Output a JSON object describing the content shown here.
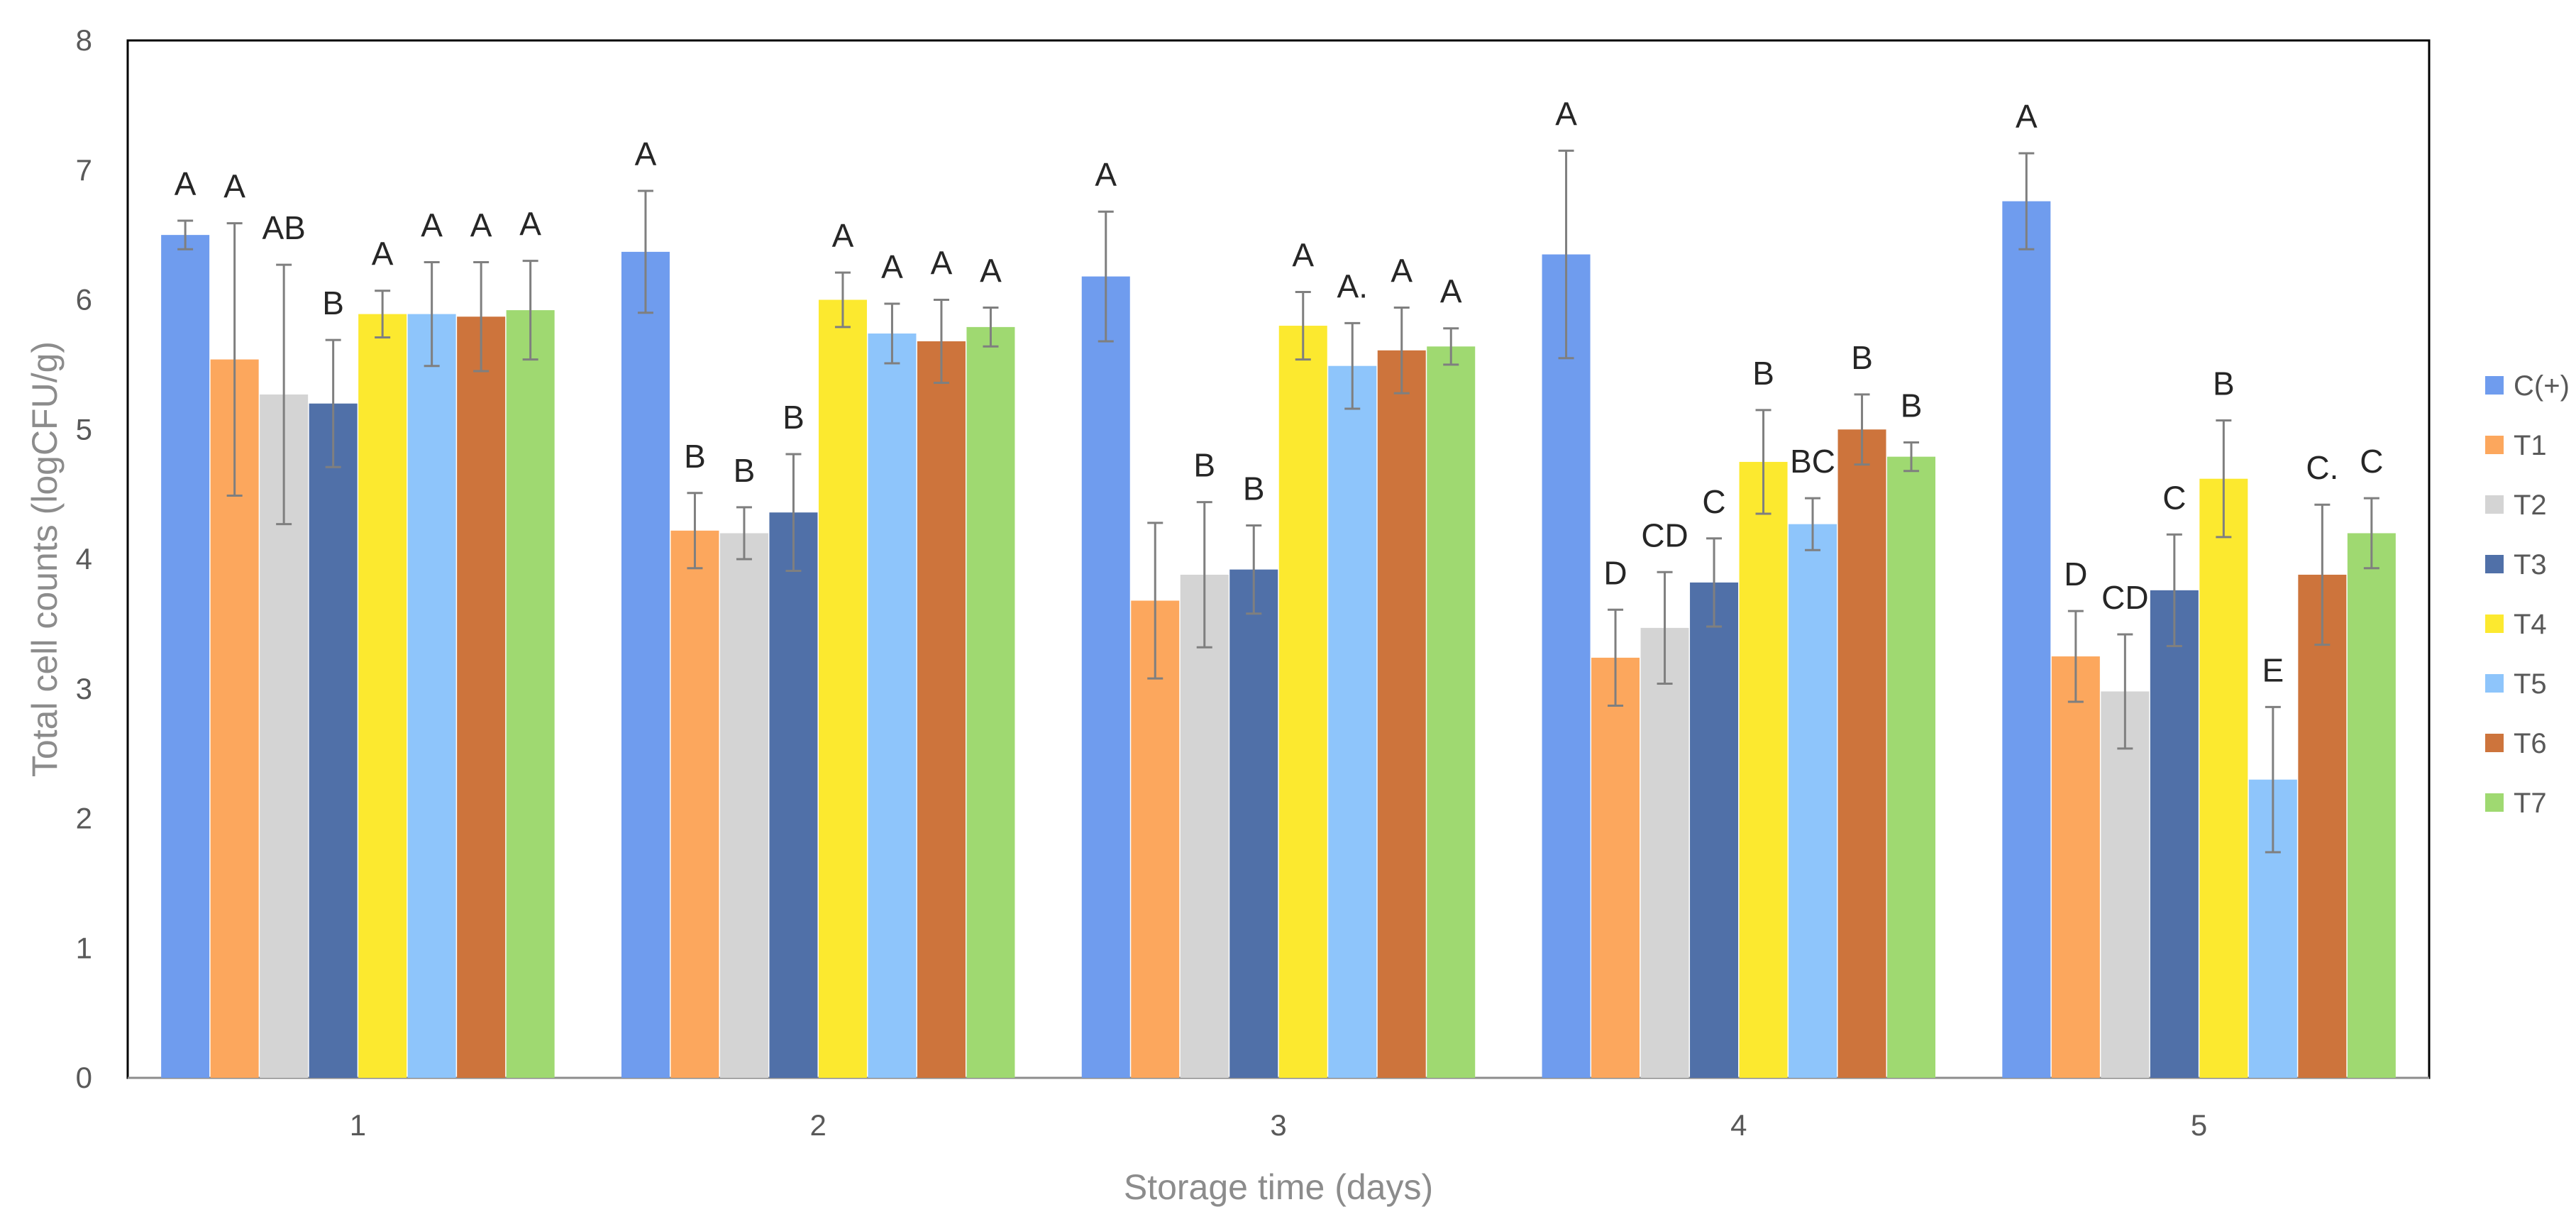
{
  "chart_data": {
    "type": "bar",
    "title": "",
    "xlabel": "Storage time (days)",
    "ylabel": "Total cell counts (logCFU/g)",
    "ylim": [
      0,
      8
    ],
    "yticks": [
      "0",
      "1",
      "2",
      "3",
      "4",
      "5",
      "6",
      "7",
      "8"
    ],
    "grid": false,
    "legend_position": "right",
    "categories": [
      "1",
      "2",
      "3",
      "4",
      "5"
    ],
    "series": [
      {
        "name": "C(+)",
        "color": "#6f9cee",
        "values": [
          6.5,
          6.37,
          6.18,
          6.35,
          6.76
        ],
        "errors": [
          0.11,
          0.47,
          0.5,
          0.8,
          0.37
        ],
        "letters": [
          "A",
          "A",
          "A",
          "A",
          "A"
        ]
      },
      {
        "name": "T1",
        "color": "#fca75d",
        "values": [
          5.54,
          4.22,
          3.68,
          3.24,
          3.25
        ],
        "errors": [
          1.05,
          0.29,
          0.6,
          0.37,
          0.35
        ],
        "letters": [
          "A",
          "B",
          "",
          "D",
          "D"
        ]
      },
      {
        "name": "T2",
        "color": "#d4d4d4",
        "values": [
          5.27,
          4.2,
          3.88,
          3.47,
          2.98
        ],
        "errors": [
          1.0,
          0.2,
          0.56,
          0.43,
          0.44
        ],
        "letters": [
          "AB",
          "B",
          "B",
          "CD",
          "CD"
        ]
      },
      {
        "name": "T3",
        "color": "#5070a8",
        "values": [
          5.2,
          4.36,
          3.92,
          3.82,
          3.76
        ],
        "errors": [
          0.49,
          0.45,
          0.34,
          0.34,
          0.43
        ],
        "letters": [
          "B",
          "B",
          "B",
          "C",
          "C"
        ]
      },
      {
        "name": "T4",
        "color": "#fce92f",
        "values": [
          5.89,
          6.0,
          5.8,
          4.75,
          4.62
        ],
        "errors": [
          0.18,
          0.21,
          0.26,
          0.4,
          0.45
        ],
        "letters": [
          "A",
          "A",
          "A",
          "B",
          "B"
        ]
      },
      {
        "name": "T5",
        "color": "#8ec5fb",
        "values": [
          5.89,
          5.74,
          5.49,
          4.27,
          2.3
        ],
        "errors": [
          0.4,
          0.23,
          0.33,
          0.2,
          0.56
        ],
        "letters": [
          "A",
          "A",
          "A.",
          "BC",
          "E"
        ]
      },
      {
        "name": "T6",
        "color": "#cd743c",
        "values": [
          5.87,
          5.68,
          5.61,
          5.0,
          3.88
        ],
        "errors": [
          0.42,
          0.32,
          0.33,
          0.27,
          0.54
        ],
        "letters": [
          "A",
          "A",
          "A",
          "B",
          "C."
        ]
      },
      {
        "name": "T7",
        "color": "#9fd971",
        "values": [
          5.92,
          5.79,
          5.64,
          4.79,
          4.2
        ],
        "errors": [
          0.38,
          0.15,
          0.14,
          0.11,
          0.27
        ],
        "letters": [
          "A",
          "A",
          "A",
          "B",
          "C"
        ]
      }
    ]
  }
}
